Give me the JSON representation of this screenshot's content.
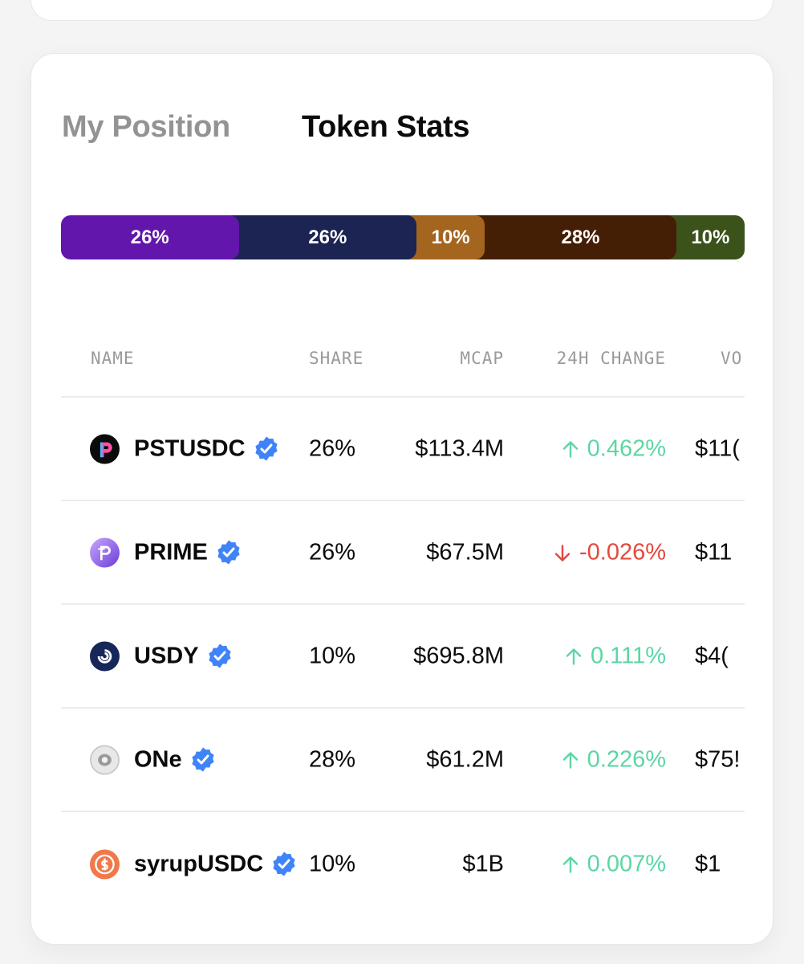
{
  "tabs": [
    {
      "label": "My Position",
      "active": false
    },
    {
      "label": "Token Stats",
      "active": true
    }
  ],
  "share_bar": [
    {
      "label": "26%",
      "value": 26,
      "color": "#6216ac"
    },
    {
      "label": "26%",
      "value": 26,
      "color": "#1b2453"
    },
    {
      "label": "10%",
      "value": 10,
      "color": "#a4651f"
    },
    {
      "label": "28%",
      "value": 28,
      "color": "#451e06"
    },
    {
      "label": "10%",
      "value": 10,
      "color": "#3b521a"
    }
  ],
  "table": {
    "headers": {
      "name": "NAME",
      "share": "SHARE",
      "mcap": "MCAP",
      "change": "24H CHANGE",
      "volume": "VO"
    },
    "rows": [
      {
        "name": "PSTUSDC",
        "icon": "pstusdc-icon",
        "share": "26%",
        "mcap": "$113.4M",
        "change": "0.462%",
        "direction": "up",
        "volume": "$11("
      },
      {
        "name": "PRIME",
        "icon": "prime-icon",
        "share": "26%",
        "mcap": "$67.5M",
        "change": "-0.026%",
        "direction": "down",
        "volume": "$11"
      },
      {
        "name": "USDY",
        "icon": "usdy-icon",
        "share": "10%",
        "mcap": "$695.8M",
        "change": "0.111%",
        "direction": "up",
        "volume": "$4("
      },
      {
        "name": "ONe",
        "icon": "one-icon",
        "share": "28%",
        "mcap": "$61.2M",
        "change": "0.226%",
        "direction": "up",
        "volume": "$75!"
      },
      {
        "name": "syrupUSDC",
        "icon": "syrupusdc-icon",
        "share": "10%",
        "mcap": "$1B",
        "change": "0.007%",
        "direction": "up",
        "volume": "$1"
      }
    ]
  },
  "colors": {
    "up": "#5cd6a4",
    "down": "#e2493e",
    "verified": "#3f83f8"
  }
}
